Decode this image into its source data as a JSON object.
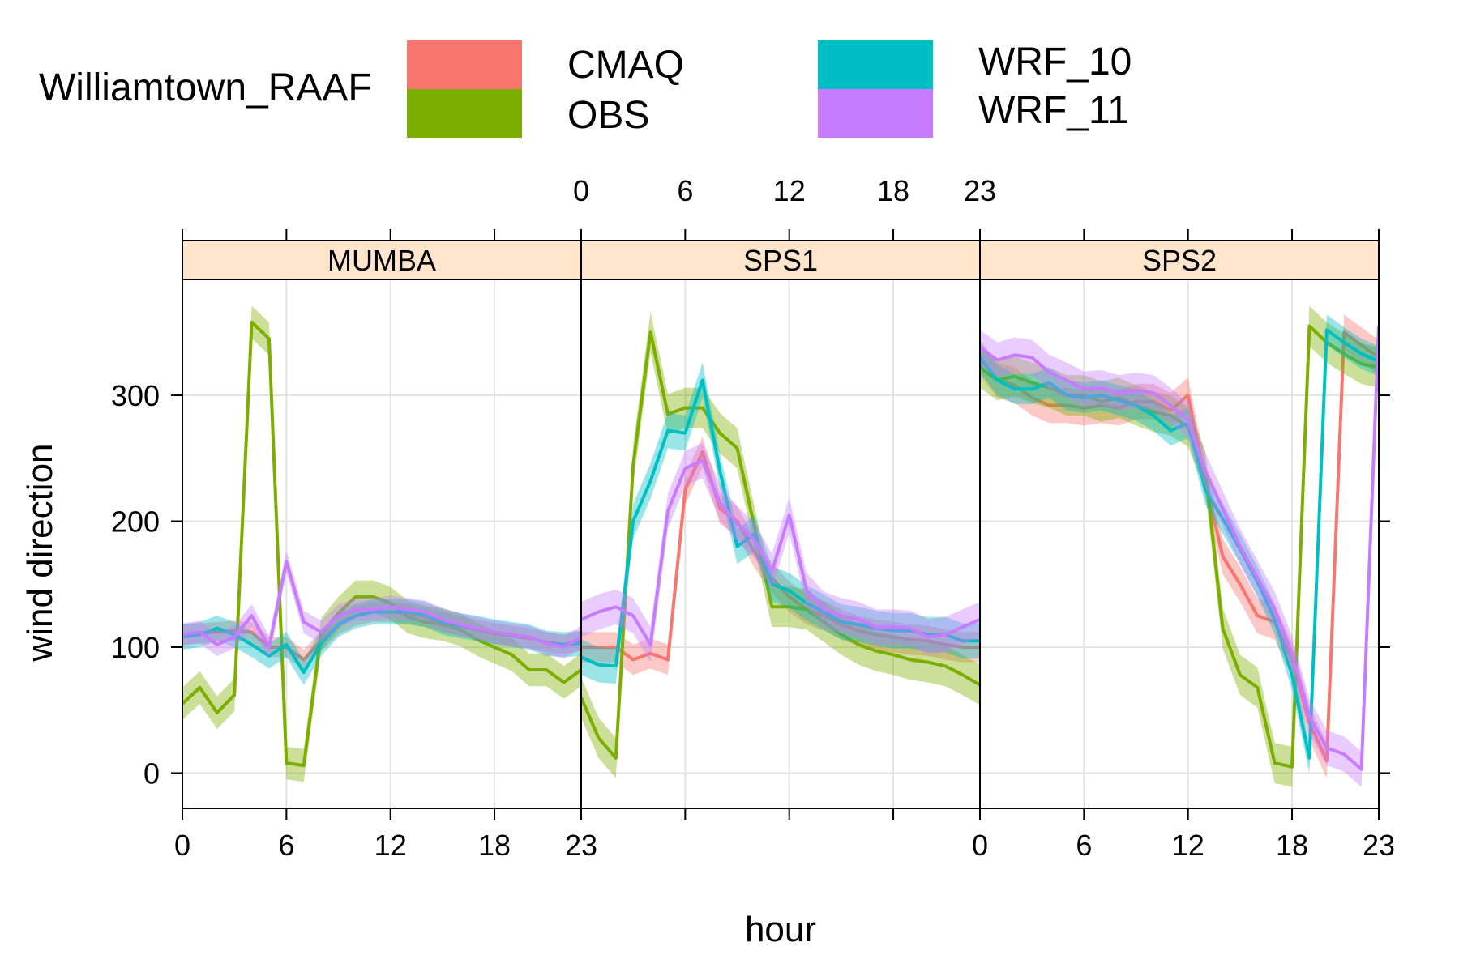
{
  "chart_data": {
    "type": "line",
    "legend": {
      "title": "Williamtown_RAAF",
      "placement": "top",
      "entries": [
        {
          "name": "CMAQ",
          "color": "#F8766D"
        },
        {
          "name": "OBS",
          "color": "#7CAE00"
        },
        {
          "name": "WRF_10",
          "color": "#00BFC4"
        },
        {
          "name": "WRF_11",
          "color": "#C77CFF"
        }
      ]
    },
    "xlabel": "hour",
    "ylabel": "wind direction",
    "x_ticks": [
      "0",
      "6",
      "12",
      "18",
      "23"
    ],
    "y_ticks": [
      "0",
      "100",
      "200",
      "300"
    ],
    "xlim": [
      0,
      23
    ],
    "ylim": [
      -28,
      392
    ],
    "grid": true,
    "strip_color": "#FFE5CC",
    "panels": [
      {
        "name": "MUMBA",
        "series": [
          {
            "name": "CMAQ",
            "band": 8,
            "values": [
              110,
              111,
              112,
              113,
              112,
              100,
              100,
              90,
              105,
              118,
              125,
              128,
              128,
              127,
              124,
              120,
              117,
              114,
              111,
              109,
              107,
              104,
              102,
              105
            ]
          },
          {
            "name": "OBS",
            "band": 13,
            "values": [
              55,
              68,
              48,
              62,
              358,
              345,
              8,
              6,
              110,
              127,
              140,
              140,
              135,
              124,
              120,
              118,
              114,
              106,
              100,
              94,
              82,
              82,
              72,
              82
            ]
          },
          {
            "name": "WRF_10",
            "band": 10,
            "values": [
              108,
              110,
              115,
              110,
              102,
              93,
              102,
              80,
              103,
              118,
              125,
              128,
              128,
              128,
              126,
              120,
              117,
              115,
              112,
              110,
              108,
              103,
              102,
              103
            ]
          },
          {
            "name": "WRF_11",
            "band": 9,
            "values": [
              110,
              112,
              102,
              108,
              125,
              100,
              168,
              120,
              112,
              125,
              130,
              130,
              132,
              130,
              128,
              122,
              118,
              115,
              112,
              110,
              108,
              103,
              100,
              108
            ]
          }
        ]
      },
      {
        "name": "SPS1",
        "series": [
          {
            "name": "CMAQ",
            "band": 12,
            "values": [
              100,
              100,
              100,
              90,
              95,
              90,
              225,
              255,
              210,
              200,
              175,
              155,
              140,
              130,
              125,
              118,
              113,
              110,
              108,
              106,
              105,
              102,
              100,
              100
            ]
          },
          {
            "name": "OBS",
            "band": 16,
            "values": [
              60,
              28,
              12,
              245,
              350,
              285,
              290,
              290,
              270,
              258,
              195,
              132,
              132,
              130,
              120,
              110,
              102,
              97,
              94,
              90,
              88,
              85,
              78,
              70
            ]
          },
          {
            "name": "WRF_10",
            "band": 14,
            "values": [
              92,
              86,
              85,
              200,
              232,
              272,
              270,
              312,
              240,
              180,
              190,
              150,
              145,
              135,
              128,
              120,
              118,
              115,
              113,
              113,
              110,
              110,
              105,
              105
            ]
          },
          {
            "name": "WRF_11",
            "band": 14,
            "values": [
              122,
              128,
              132,
              125,
              102,
              208,
              242,
              248,
              215,
              198,
              185,
              160,
              205,
              145,
              130,
              125,
              122,
              116,
              116,
              115,
              108,
              110,
              116,
              122
            ]
          }
        ]
      },
      {
        "name": "SPS2",
        "series": [
          {
            "name": "CMAQ",
            "band": 14,
            "values": [
              330,
              312,
              308,
              298,
              292,
              292,
              290,
              292,
              290,
              295,
              295,
              288,
              300,
              232,
              172,
              150,
              125,
              120,
              90,
              40,
              10,
              350,
              340,
              330
            ]
          },
          {
            "name": "OBS",
            "band": 16,
            "values": [
              322,
              312,
              315,
              310,
              306,
              300,
              300,
              295,
              298,
              292,
              287,
              284,
              275,
              240,
              115,
              78,
              68,
              8,
              5,
              355,
              342,
              333,
              325,
              322
            ]
          },
          {
            "name": "WRF_10",
            "band": 12,
            "values": [
              330,
              312,
              305,
              305,
              310,
              300,
              298,
              300,
              296,
              292,
              284,
              272,
              278,
              225,
              202,
              178,
              152,
              122,
              78,
              12,
              352,
              342,
              333,
              327
            ]
          },
          {
            "name": "WRF_11",
            "band": 14,
            "values": [
              338,
              328,
              332,
              330,
              318,
              312,
              305,
              306,
              302,
              304,
              302,
              292,
              280,
              240,
              210,
              180,
              155,
              130,
              95,
              45,
              20,
              15,
              3,
              355
            ]
          }
        ]
      }
    ]
  }
}
